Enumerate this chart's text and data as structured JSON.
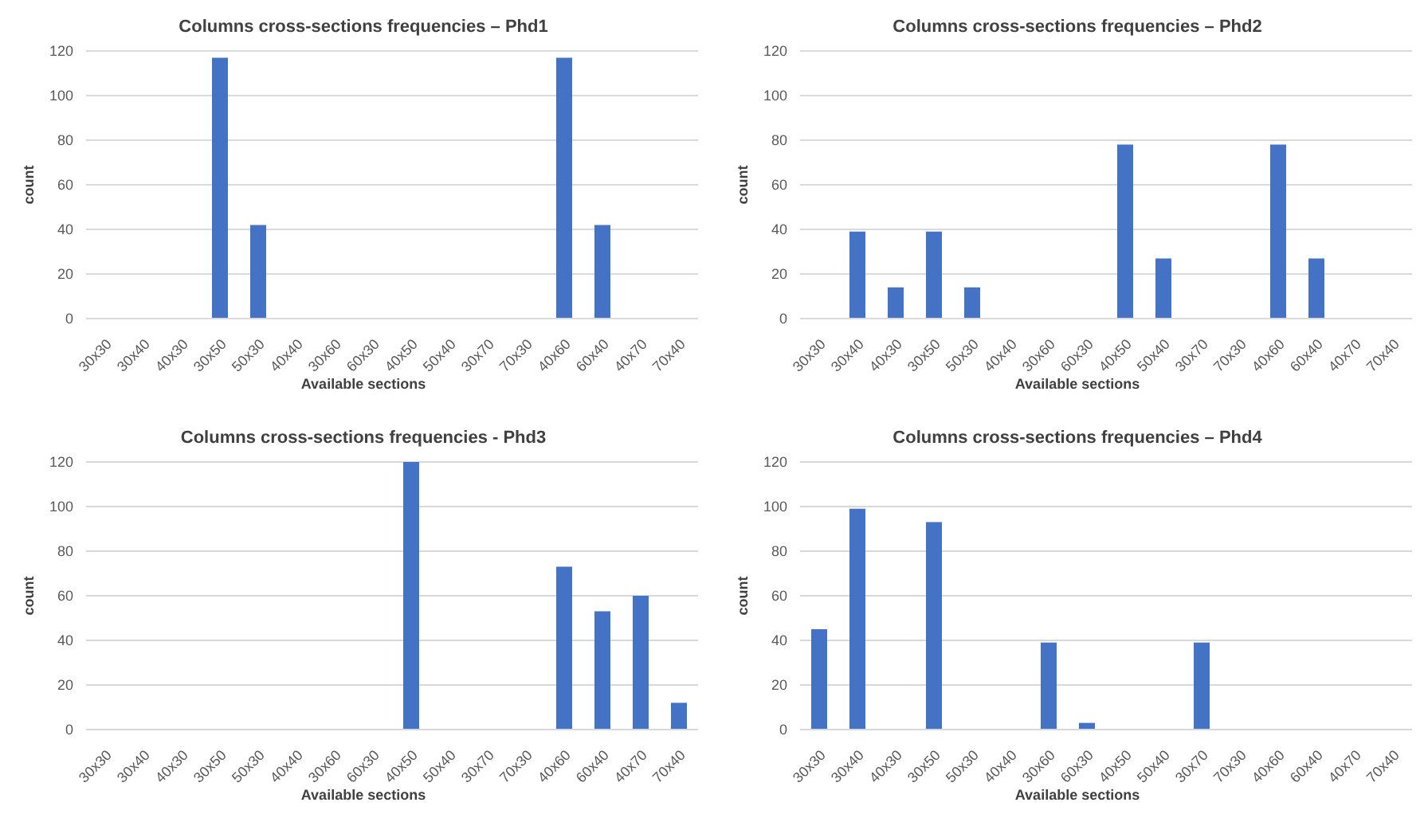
{
  "chart_data": [
    {
      "type": "bar",
      "title": "Columns cross-sections frequencies – Phd1",
      "xlabel": "Available sections",
      "ylabel": "count",
      "categories": [
        "30x30",
        "30x40",
        "40x30",
        "30x50",
        "50x30",
        "40x40",
        "30x60",
        "60x30",
        "40x50",
        "50x40",
        "30x70",
        "70x30",
        "40x60",
        "60x40",
        "40x70",
        "70x40"
      ],
      "values": [
        0,
        0,
        0,
        117,
        42,
        0,
        0,
        0,
        0,
        0,
        0,
        0,
        117,
        42,
        0,
        0
      ],
      "color": "#4472c4",
      "ylim": [
        0,
        120
      ],
      "yticks": [
        0,
        20,
        40,
        60,
        80,
        100,
        120
      ],
      "grid": "y"
    },
    {
      "type": "bar",
      "title": "Columns cross-sections frequencies – Phd2",
      "xlabel": "Available sections",
      "ylabel": "count",
      "categories": [
        "30x30",
        "30x40",
        "40x30",
        "30x50",
        "50x30",
        "40x40",
        "30x60",
        "60x30",
        "40x50",
        "50x40",
        "30x70",
        "70x30",
        "40x60",
        "60x40",
        "40x70",
        "70x40"
      ],
      "values": [
        0,
        39,
        14,
        39,
        14,
        0,
        0,
        0,
        78,
        27,
        0,
        0,
        78,
        27,
        0,
        0
      ],
      "color": "#4472c4",
      "ylim": [
        0,
        120
      ],
      "yticks": [
        0,
        20,
        40,
        60,
        80,
        100,
        120
      ],
      "grid": "y"
    },
    {
      "type": "bar",
      "title": "Columns cross-sections frequencies - Phd3",
      "xlabel": "Available sections",
      "ylabel": "count",
      "categories": [
        "30x30",
        "30x40",
        "40x30",
        "30x50",
        "50x30",
        "40x40",
        "30x60",
        "60x30",
        "40x50",
        "50x40",
        "30x70",
        "70x30",
        "40x60",
        "60x40",
        "40x70",
        "70x40"
      ],
      "values": [
        0,
        0,
        0,
        0,
        0,
        0,
        0,
        0,
        120,
        0,
        0,
        0,
        73,
        53,
        60,
        12
      ],
      "color": "#4472c4",
      "ylim": [
        0,
        120
      ],
      "yticks": [
        0,
        20,
        40,
        60,
        80,
        100,
        120
      ],
      "grid": "y"
    },
    {
      "type": "bar",
      "title": "Columns cross-sections frequencies – Phd4",
      "xlabel": "Available sections",
      "ylabel": "count",
      "categories": [
        "30x30",
        "30x40",
        "40x30",
        "30x50",
        "50x30",
        "40x40",
        "30x60",
        "60x30",
        "40x50",
        "50x40",
        "30x70",
        "70x30",
        "40x60",
        "60x40",
        "40x70",
        "70x40"
      ],
      "values": [
        45,
        99,
        0,
        93,
        0,
        0,
        39,
        3,
        0,
        0,
        39,
        0,
        0,
        0,
        0,
        0
      ],
      "color": "#4472c4",
      "ylim": [
        0,
        120
      ],
      "yticks": [
        0,
        20,
        40,
        60,
        80,
        100,
        120
      ],
      "grid": "y"
    }
  ]
}
